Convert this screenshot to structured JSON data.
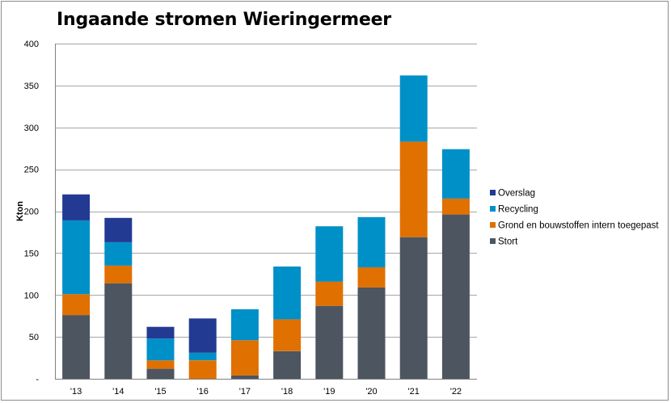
{
  "chart_data": {
    "type": "bar",
    "stacked": true,
    "title": "Ingaande stromen Wieringermeer",
    "xlabel": "",
    "ylabel": "Kton",
    "ylim": [
      0,
      400
    ],
    "yticks": [
      0,
      50,
      100,
      150,
      200,
      250,
      300,
      350,
      400
    ],
    "ytick_labels": [
      "-",
      "50",
      "100",
      "150",
      "200",
      "250",
      "300",
      "350",
      "400"
    ],
    "grid": true,
    "legend_position": "right",
    "categories": [
      "'13",
      "'14",
      "'15",
      "'16",
      "'17",
      "'18",
      "'19",
      "'20",
      "'21",
      "'22"
    ],
    "series": [
      {
        "name": "Stort",
        "color": "#4d5560",
        "values": [
          76,
          114,
          12,
          0,
          4,
          33,
          87,
          109,
          169,
          196
        ]
      },
      {
        "name": "Grond en bouwstoffen intern toegepast",
        "color": "#e07000",
        "values": [
          25,
          21,
          10,
          22,
          42,
          38,
          29,
          24,
          114,
          19
        ]
      },
      {
        "name": "Recycling",
        "color": "#0090c8",
        "values": [
          88,
          28,
          26,
          9,
          37,
          63,
          66,
          60,
          79,
          59
        ]
      },
      {
        "name": "Overslag",
        "color": "#233a93",
        "values": [
          31,
          29,
          14,
          41,
          0,
          0,
          0,
          0,
          0,
          0
        ]
      }
    ],
    "legend_order": [
      "Overslag",
      "Recycling",
      "Grond en bouwstoffen intern toegepast",
      "Stort"
    ]
  }
}
